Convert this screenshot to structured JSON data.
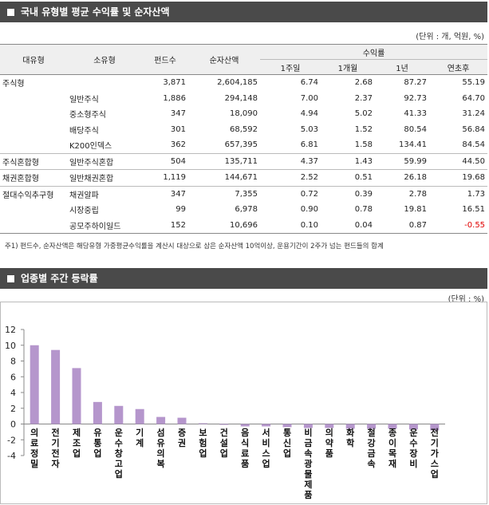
{
  "section1": {
    "title": "국내 유형별 평균 수익률 및 순자산액",
    "unit": "(단위 : 개, 억원, %)",
    "headers": {
      "type": "대유형",
      "subtype": "소유형",
      "funds": "펀드수",
      "assets": "순자산액",
      "returns": "수익률",
      "w1": "1주일",
      "m1": "1개월",
      "y1": "1년",
      "ytd": "연초후"
    },
    "rows": [
      {
        "type": "주식형",
        "subtype": "",
        "funds": "3,871",
        "assets": "2,604,185",
        "w1": "6.74",
        "m1": "2.68",
        "y1": "87.27",
        "ytd": "55.19",
        "grp": true
      },
      {
        "type": "",
        "subtype": "일반주식",
        "funds": "1,886",
        "assets": "294,148",
        "w1": "7.00",
        "m1": "2.37",
        "y1": "92.73",
        "ytd": "64.70",
        "grp": false
      },
      {
        "type": "",
        "subtype": "중소형주식",
        "funds": "347",
        "assets": "18,090",
        "w1": "4.94",
        "m1": "5.02",
        "y1": "41.33",
        "ytd": "31.24",
        "grp": false
      },
      {
        "type": "",
        "subtype": "배당주식",
        "funds": "301",
        "assets": "68,592",
        "w1": "5.03",
        "m1": "1.52",
        "y1": "80.54",
        "ytd": "56.84",
        "grp": false
      },
      {
        "type": "",
        "subtype": "K200인덱스",
        "funds": "362",
        "assets": "657,395",
        "w1": "6.81",
        "m1": "1.58",
        "y1": "134.41",
        "ytd": "84.54",
        "grp": false
      },
      {
        "type": "주식혼합형",
        "subtype": "일반주식혼합",
        "funds": "504",
        "assets": "135,711",
        "w1": "4.37",
        "m1": "1.43",
        "y1": "59.99",
        "ytd": "44.50",
        "grp": true
      },
      {
        "type": "채권혼합형",
        "subtype": "일반채권혼합",
        "funds": "1,119",
        "assets": "144,671",
        "w1": "2.52",
        "m1": "0.51",
        "y1": "26.18",
        "ytd": "19.68",
        "grp": true
      },
      {
        "type": "절대수익추구형",
        "subtype": "채권알파",
        "funds": "347",
        "assets": "7,355",
        "w1": "0.72",
        "m1": "0.39",
        "y1": "2.78",
        "ytd": "1.73",
        "grp": true
      },
      {
        "type": "",
        "subtype": "시장중립",
        "funds": "99",
        "assets": "6,978",
        "w1": "0.90",
        "m1": "0.78",
        "y1": "19.81",
        "ytd": "16.51",
        "grp": false
      },
      {
        "type": "",
        "subtype": "공모주하이일드",
        "funds": "152",
        "assets": "10,696",
        "w1": "0.10",
        "m1": "0.04",
        "y1": "0.87",
        "ytd": "-0.55",
        "grp": false
      }
    ],
    "note": "주1) 펀드수, 순자산액은 해당유형 가중평균수익률을 계산시 대상으로 삼은 순자산액 10억이상, 운용기간이 2주가 넘는 펀드들의 합계"
  },
  "section2": {
    "title": "업종별 주간 등락률",
    "unit": "(단위 : %)"
  },
  "chart_data": {
    "type": "bar",
    "categories": [
      "의료정밀",
      "전기전자",
      "제조업",
      "유통업",
      "운수창고업",
      "기계",
      "섬유의복",
      "증권",
      "보험업",
      "건설업",
      "음식료품",
      "서비스업",
      "통신업",
      "비금속광물제품",
      "의약품",
      "화학",
      "철강금속",
      "종이목재",
      "운수장비",
      "전기가스업"
    ],
    "values": [
      10.0,
      9.4,
      7.1,
      2.8,
      2.3,
      1.9,
      0.9,
      0.8,
      0.1,
      -0.1,
      -0.3,
      -0.3,
      -0.4,
      -0.5,
      -0.5,
      -0.6,
      -0.6,
      -0.6,
      -0.7,
      -0.8
    ],
    "ylim": [
      -4,
      12
    ],
    "yticks": [
      -4,
      -2,
      0,
      2,
      4,
      6,
      8,
      10,
      12
    ],
    "bar_color": "#b596cc",
    "grid": false
  }
}
